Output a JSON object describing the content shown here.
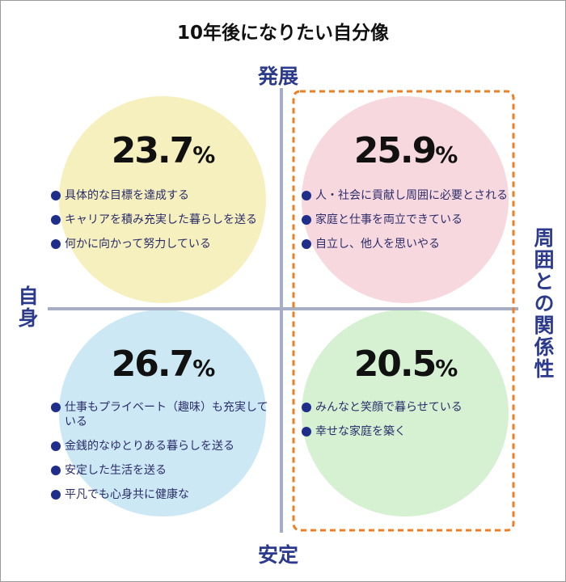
{
  "title": "10年後になりたい自分像",
  "axes": {
    "top": "発展",
    "bottom": "安定",
    "left": "自身",
    "right": "周囲との関係性"
  },
  "percent_unit": "%",
  "quadrants": [
    {
      "percent": 23.7,
      "items": [
        "具体的な目標を達成する",
        "キャリアを積み充実した暮らしを送る",
        "何かに向かって努力している"
      ]
    },
    {
      "percent": 25.9,
      "items": [
        "人・社会に貢献し周囲に必要とされる",
        "家庭と仕事を両立できている",
        "自立し、他人を思いやる"
      ]
    },
    {
      "percent": 26.7,
      "items": [
        "仕事もプライベート（趣味）も充実している",
        "金銭的なゆとりある暮らしを送る",
        "安定した生活を送る",
        "平凡でも心身共に健康な"
      ]
    },
    {
      "percent": 20.5,
      "items": [
        "みんなと笑顔で暮らせている",
        "幸せな家庭を築く"
      ]
    }
  ]
}
